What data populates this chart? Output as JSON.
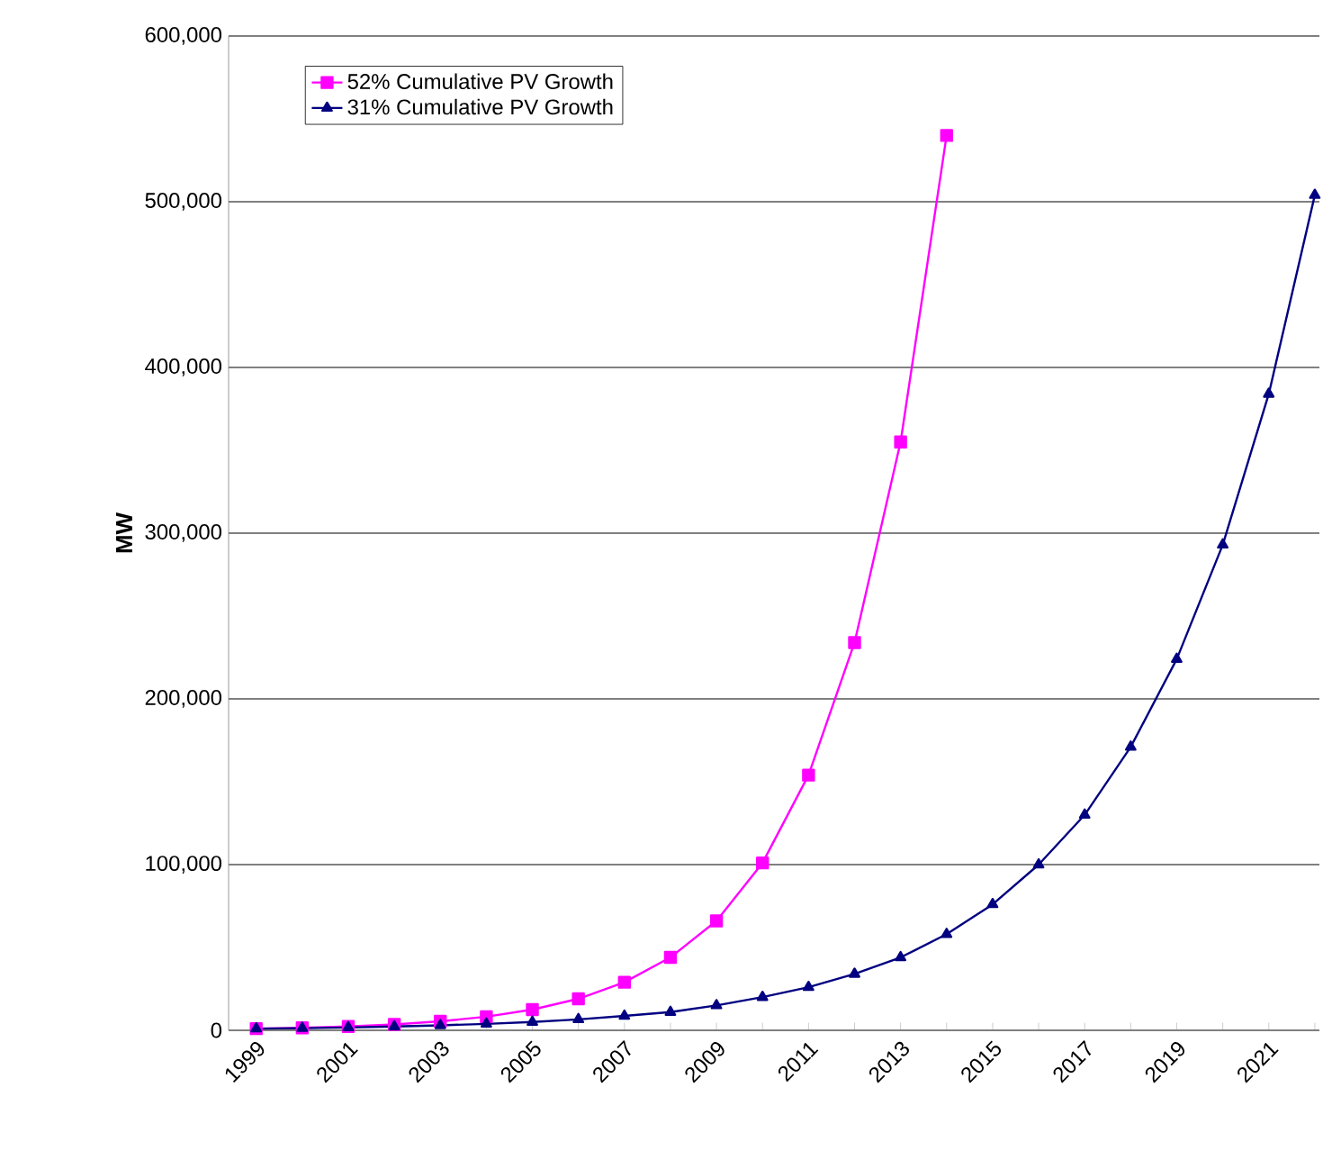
{
  "chart_data": {
    "type": "line",
    "ylabel": "MW",
    "categories": [
      "1999",
      null,
      "2001",
      null,
      "2003",
      null,
      "2005",
      null,
      "2007",
      null,
      "2009",
      null,
      "2011",
      null,
      "2013",
      null,
      "2015",
      null,
      "2017",
      null,
      "2019",
      null,
      "2021",
      null
    ],
    "series": [
      {
        "name": "52% Cumulative PV Growth",
        "color": "#ff00ff",
        "marker": "square",
        "values": [
          1000,
          1500,
          2300,
          3500,
          5400,
          8200,
          12500,
          19000,
          29000,
          44000,
          66000,
          101000,
          154000,
          234000,
          355000,
          540000,
          null,
          null,
          null,
          null,
          null,
          null,
          null,
          null
        ]
      },
      {
        "name": "31% Cumulative PV Growth",
        "color": "#000080",
        "marker": "triangle",
        "values": [
          1000,
          1300,
          1700,
          2300,
          3000,
          3900,
          5000,
          6600,
          8700,
          11000,
          15000,
          20000,
          26000,
          34000,
          44000,
          58000,
          76000,
          100000,
          130000,
          171000,
          224000,
          293000,
          384000,
          504000
        ]
      }
    ],
    "ylim": [
      0,
      600000
    ],
    "yticks": [
      {
        "value": 0,
        "label": "0"
      },
      {
        "value": 100000,
        "label": "100,000"
      },
      {
        "value": 200000,
        "label": "200,000"
      },
      {
        "value": 300000,
        "label": "300,000"
      },
      {
        "value": 400000,
        "label": "400,000"
      },
      {
        "value": 500000,
        "label": "500,000"
      },
      {
        "value": 600000,
        "label": "600,000"
      }
    ],
    "grid": "y",
    "legend": "top left",
    "line_style": "solid"
  }
}
